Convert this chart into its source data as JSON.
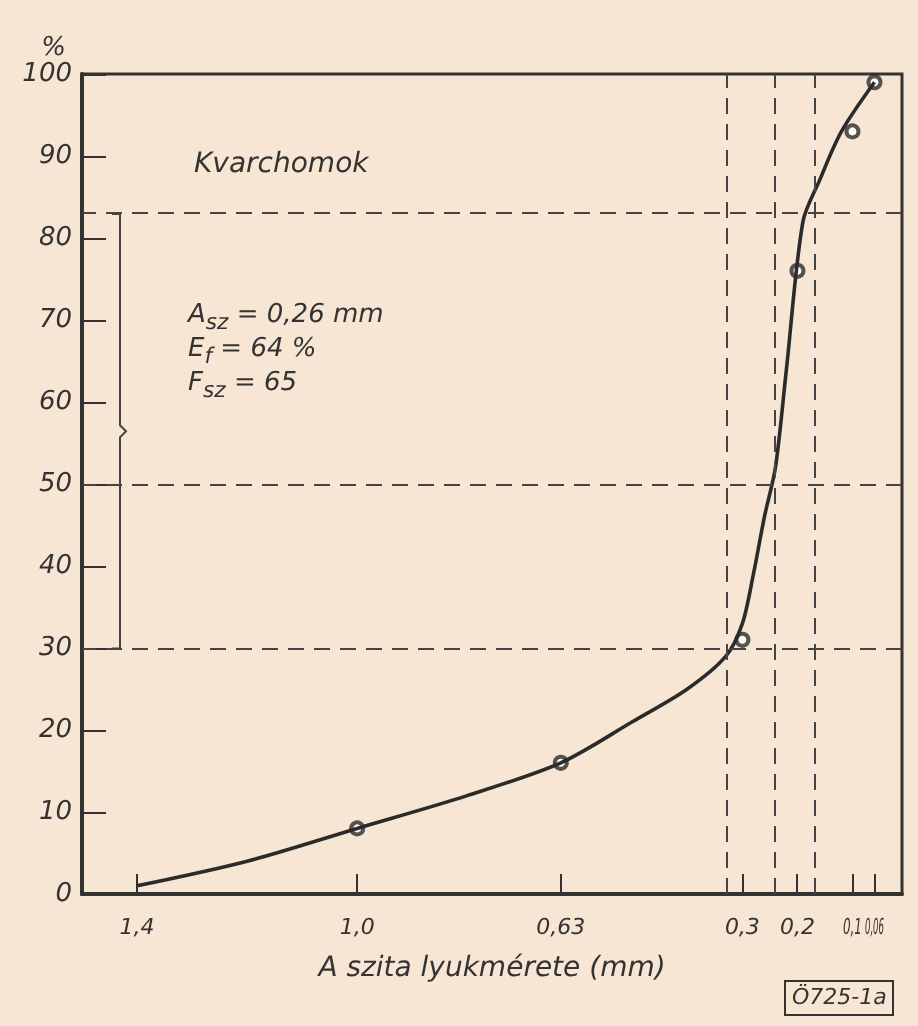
{
  "chart_data": {
    "type": "line",
    "title": "Kvarchomok",
    "xlabel": "A szita lyukmérete (mm)",
    "ylabel": "%",
    "xlim": [
      1.5,
      0.01
    ],
    "xticks": [
      {
        "value": 1.4,
        "label": "1,4"
      },
      {
        "value": 1.0,
        "label": "1,0"
      },
      {
        "value": 0.63,
        "label": "0,63"
      },
      {
        "value": 0.3,
        "label": "0,3"
      },
      {
        "value": 0.2,
        "label": "0,2"
      },
      {
        "value": 0.1,
        "label": "0,1"
      },
      {
        "value": 0.06,
        "label": "0,06"
      }
    ],
    "ylim": [
      0,
      100
    ],
    "yticks": [
      0,
      10,
      20,
      30,
      40,
      50,
      60,
      70,
      80,
      90,
      100
    ],
    "grid": false,
    "series": [
      {
        "color": "#2b2b2b",
        "marker": "none",
        "line_style": "solid",
        "x": [
          1.4,
          1.2,
          1.0,
          0.8,
          0.63,
          0.5,
          0.4,
          0.33,
          0.3,
          0.28,
          0.26,
          0.24,
          0.22,
          0.19,
          0.16,
          0.12,
          0.06
        ],
        "values": [
          1,
          4,
          8,
          12,
          16,
          21,
          25,
          29,
          33,
          39,
          46,
          52,
          64,
          82,
          87,
          93,
          99
        ]
      },
      {
        "type": "scatter",
        "color": "#2b2b2b",
        "marker": "circle",
        "x": [
          1.0,
          0.63,
          0.3,
          0.2,
          0.1,
          0.06
        ],
        "values": [
          8,
          16,
          31,
          76,
          93,
          99
        ]
      }
    ],
    "ref_lines": [
      {
        "axis": "y",
        "value": 30,
        "line_style": "dashed"
      },
      {
        "axis": "y",
        "value": 50,
        "line_style": "dashed"
      },
      {
        "axis": "y",
        "value": 83,
        "line_style": "dashed"
      },
      {
        "axis": "x",
        "value": 0.33,
        "line_style": "dashed"
      },
      {
        "axis": "x",
        "value": 0.24,
        "line_style": "dashed"
      },
      {
        "axis": "x",
        "value": 0.17,
        "line_style": "dashed"
      }
    ],
    "annotations": [
      "A$_{sz}$ = 0,26 mm",
      "E$_{f}$ = 64 %",
      "F$_{sz}$ = 65",
      "Ö725-1a"
    ]
  }
}
